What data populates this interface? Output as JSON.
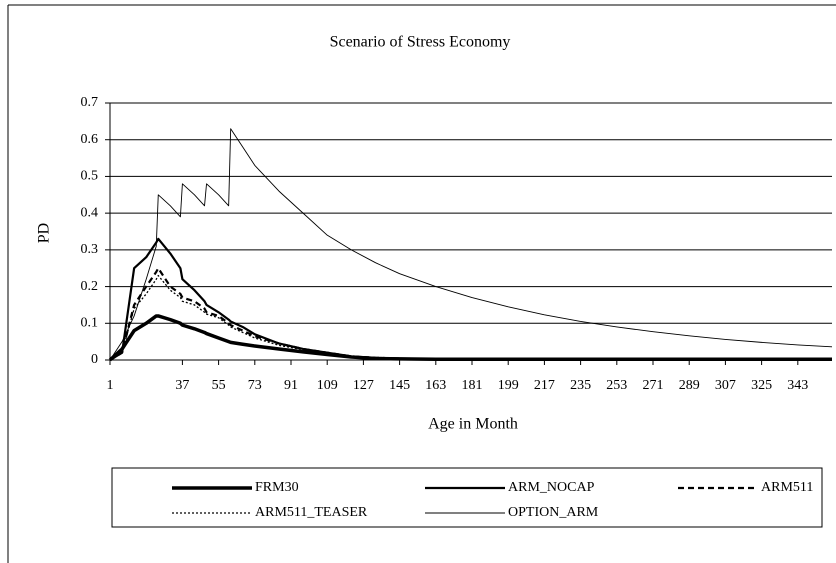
{
  "chart_data": {
    "type": "line",
    "title": "Scenario of Stress Economy",
    "xlabel": "Age in Month",
    "ylabel": "PD",
    "x": [
      1,
      7,
      13,
      19,
      24,
      25,
      31,
      36,
      37,
      43,
      48,
      49,
      55,
      60,
      61,
      67,
      73,
      85,
      97,
      109,
      121,
      133,
      145,
      163,
      181,
      199,
      217,
      235,
      253,
      271,
      289,
      307,
      325,
      343,
      360
    ],
    "xlim": [
      1,
      360
    ],
    "xticks": [
      1,
      37,
      55,
      73,
      91,
      109,
      127,
      145,
      163,
      181,
      199,
      217,
      235,
      253,
      271,
      289,
      307,
      325,
      343
    ],
    "ylim": [
      0,
      0.7
    ],
    "yticks": [
      0,
      0.1,
      0.2,
      0.3,
      0.4,
      0.5,
      0.6,
      0.7
    ],
    "grid": true,
    "legend": "bottom",
    "series": [
      {
        "name": "FRM30",
        "color": "#000000",
        "style": "thick",
        "values": [
          0,
          0.03,
          0.08,
          0.1,
          0.12,
          0.12,
          0.11,
          0.1,
          0.095,
          0.085,
          0.075,
          0.072,
          0.06,
          0.05,
          0.048,
          0.043,
          0.038,
          0.03,
          0.022,
          0.015,
          0.008,
          0.004,
          0.003,
          0.002,
          0.002,
          0.002,
          0.002,
          0.002,
          0.002,
          0.002,
          0.002,
          0.002,
          0.002,
          0.002,
          0.002
        ]
      },
      {
        "name": "ARM_NOCAP",
        "color": "#000000",
        "style": "solid",
        "values": [
          0,
          0.02,
          0.25,
          0.28,
          0.32,
          0.33,
          0.29,
          0.25,
          0.22,
          0.19,
          0.16,
          0.15,
          0.13,
          0.11,
          0.105,
          0.09,
          0.07,
          0.045,
          0.03,
          0.02,
          0.01,
          0.006,
          0.004,
          0.003,
          0.003,
          0.003,
          0.003,
          0.003,
          0.003,
          0.003,
          0.003,
          0.003,
          0.003,
          0.003,
          0.003
        ]
      },
      {
        "name": "ARM511",
        "color": "#000000",
        "style": "dashed",
        "values": [
          0,
          0.02,
          0.15,
          0.2,
          0.24,
          0.25,
          0.2,
          0.18,
          0.17,
          0.16,
          0.14,
          0.13,
          0.12,
          0.1,
          0.095,
          0.08,
          0.065,
          0.045,
          0.03,
          0.02,
          0.01,
          0.006,
          0.004,
          0.003,
          0.003,
          0.003,
          0.003,
          0.003,
          0.003,
          0.003,
          0.003,
          0.003,
          0.003,
          0.003,
          0.003
        ]
      },
      {
        "name": "ARM511_TEASER",
        "color": "#000000",
        "style": "dotted",
        "values": [
          0,
          0.02,
          0.14,
          0.18,
          0.22,
          0.23,
          0.19,
          0.17,
          0.16,
          0.15,
          0.13,
          0.125,
          0.115,
          0.095,
          0.09,
          0.075,
          0.06,
          0.04,
          0.028,
          0.018,
          0.009,
          0.005,
          0.004,
          0.003,
          0.003,
          0.003,
          0.003,
          0.003,
          0.003,
          0.003,
          0.003,
          0.003,
          0.003,
          0.003,
          0.003
        ]
      },
      {
        "name": "OPTION_ARM",
        "color": "#000000",
        "style": "thin",
        "values": [
          0,
          0.05,
          0.12,
          0.22,
          0.31,
          0.45,
          0.42,
          0.39,
          0.48,
          0.45,
          0.42,
          0.48,
          0.45,
          0.42,
          0.63,
          0.58,
          0.53,
          0.46,
          0.4,
          0.34,
          0.3,
          0.265,
          0.235,
          0.2,
          0.17,
          0.145,
          0.123,
          0.105,
          0.09,
          0.077,
          0.066,
          0.056,
          0.048,
          0.041,
          0.036
        ]
      }
    ]
  }
}
